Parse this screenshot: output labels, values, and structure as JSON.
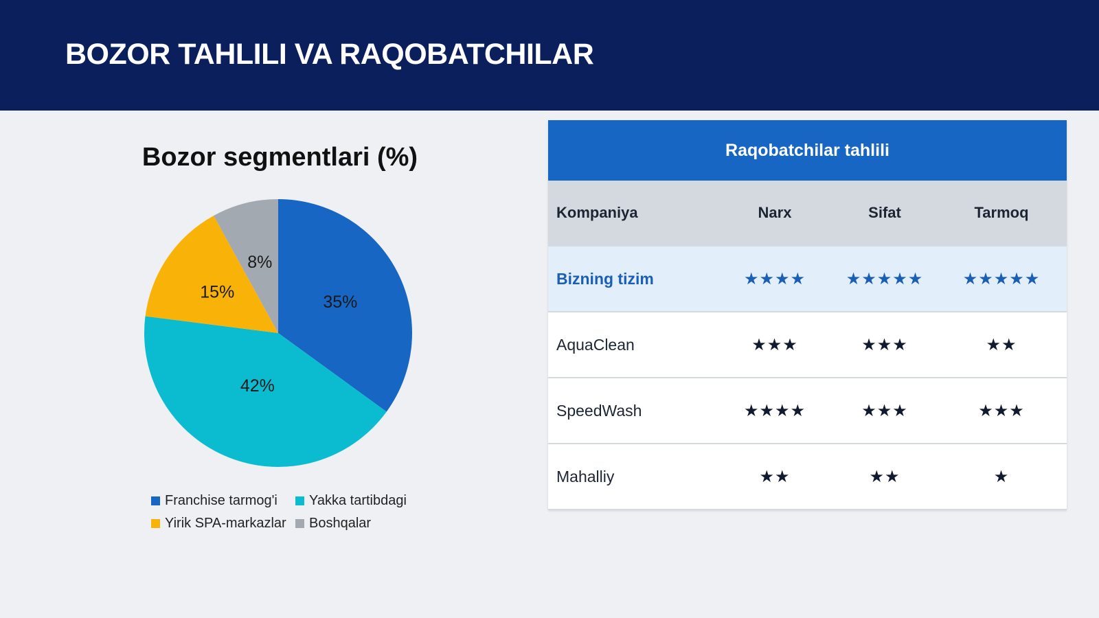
{
  "header": {
    "title": "BOZOR TAHLILI VA RAQOBATCHILAR"
  },
  "chart_data": {
    "type": "pie",
    "title": "Bozor segmentlari (%)",
    "categories": [
      "Franchise tarmog'i",
      "Yakka tartibdagi",
      "Yirik SPA-markazlar",
      "Boshqalar"
    ],
    "values": [
      35,
      42,
      15,
      8
    ],
    "labels": [
      "35%",
      "42%",
      "15%",
      "8%"
    ],
    "colors": [
      "#1766c4",
      "#0bbcd1",
      "#f9b208",
      "#a3a9b1"
    ],
    "legend_position": "bottom",
    "start": "top",
    "direction": "clockwise"
  },
  "table": {
    "title": "Raqobatchilar tahlili",
    "columns": [
      "Kompaniya",
      "Narx",
      "Sifat",
      "Tarmoq"
    ],
    "rows": [
      {
        "company": "Bizning tizim",
        "narx": "★★★★",
        "sifat": "★★★★★",
        "tarmoq": "★★★★★",
        "rating": [
          4,
          5,
          5
        ]
      },
      {
        "company": "AquaClean",
        "narx": "★★★",
        "sifat": "★★★",
        "tarmoq": "★★",
        "rating": [
          3,
          3,
          2
        ]
      },
      {
        "company": "SpeedWash",
        "narx": "★★★★",
        "sifat": "★★★",
        "tarmoq": "★★★",
        "rating": [
          4,
          3,
          3
        ]
      },
      {
        "company": "Mahalliy",
        "narx": "★★",
        "sifat": "★★",
        "tarmoq": "★",
        "rating": [
          2,
          2,
          1
        ]
      }
    ],
    "highlight_color": "#1a5fb4"
  }
}
